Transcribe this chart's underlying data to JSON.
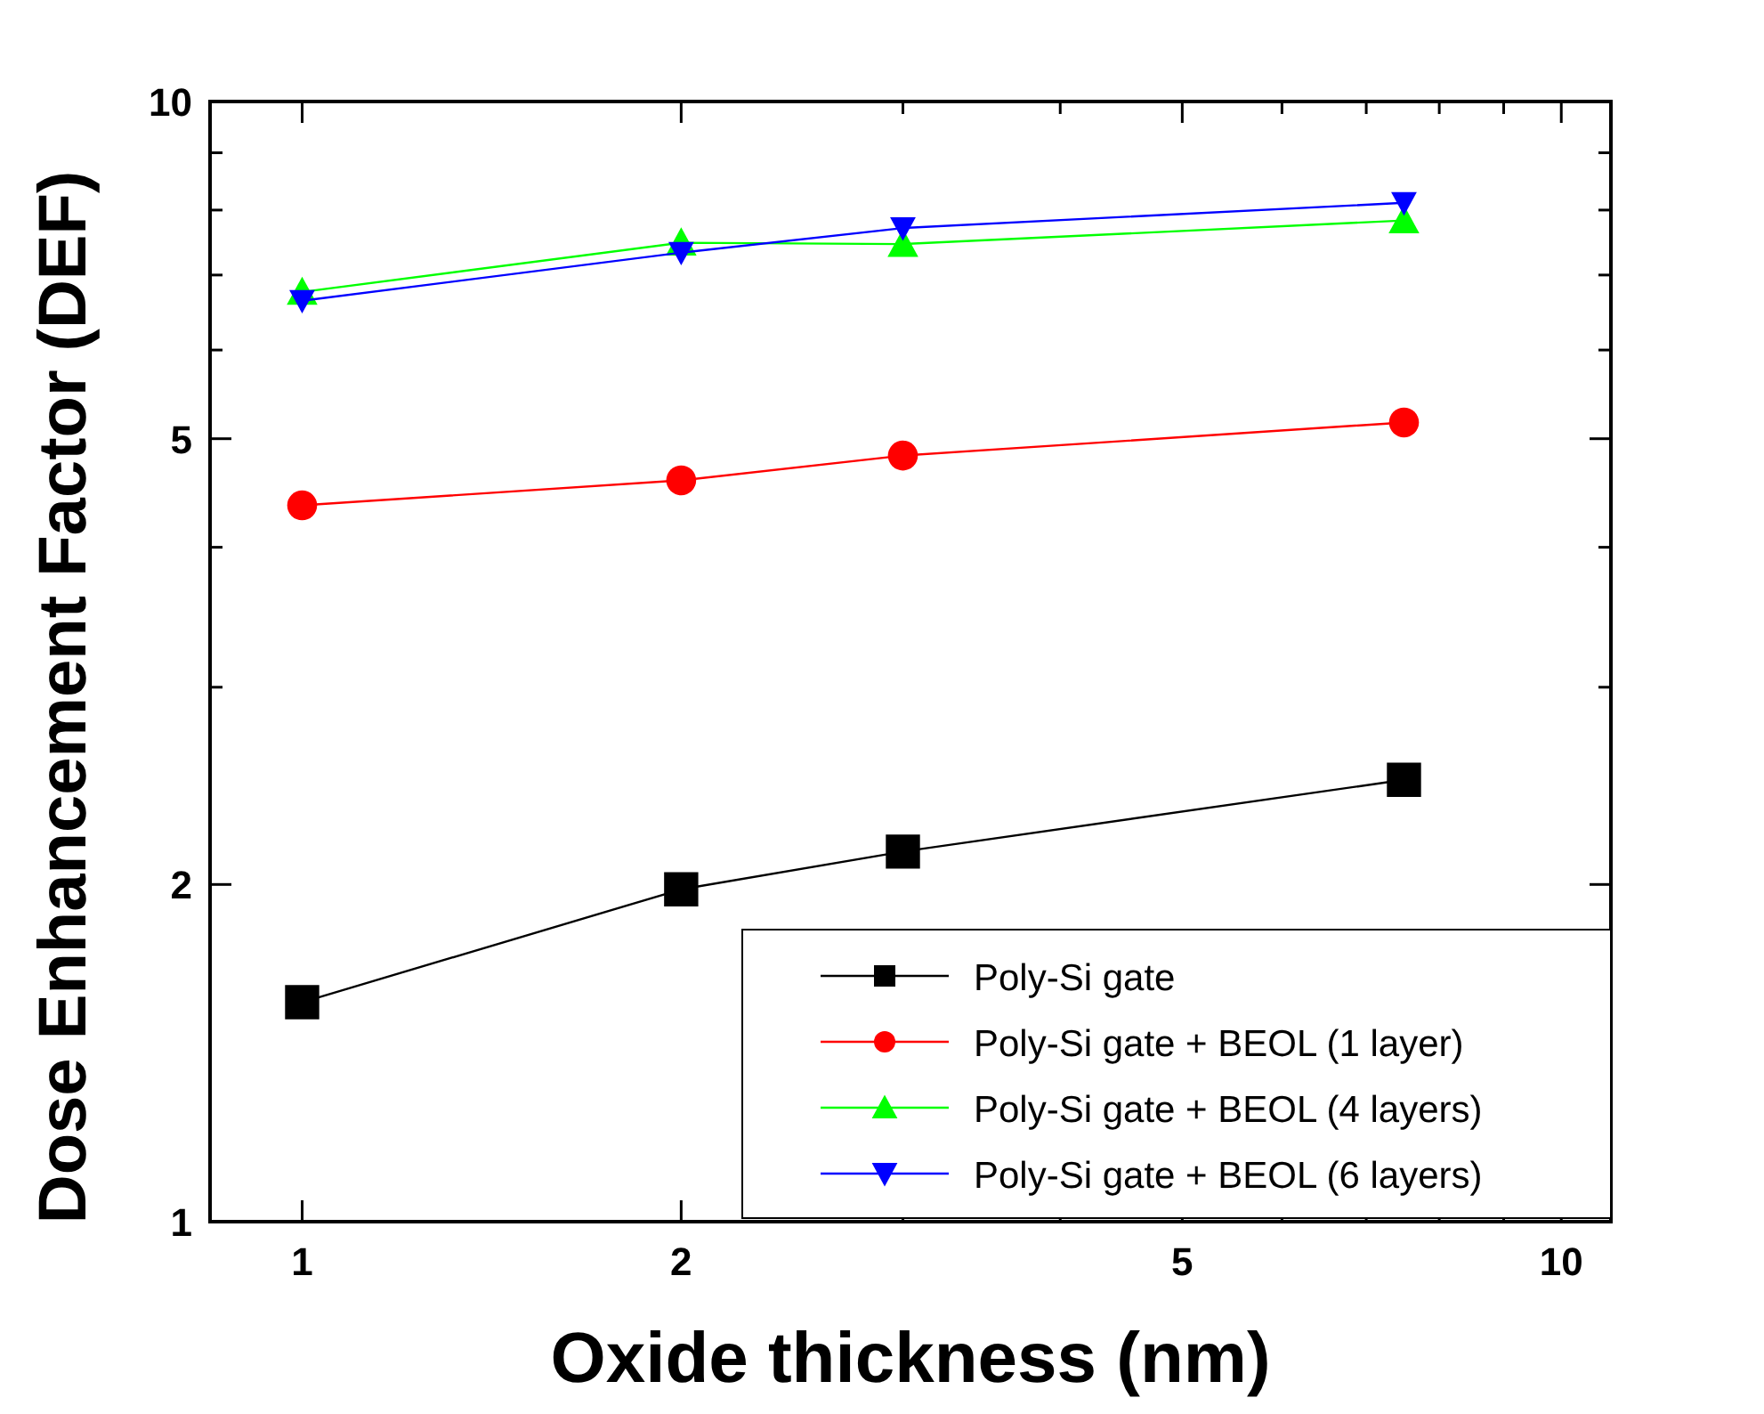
{
  "chart_data": {
    "type": "line",
    "xlabel": "Oxide thickness (nm)",
    "ylabel": "Dose Enhancement Factor (DEF)",
    "log": "xy",
    "xlim": [
      0.845,
      10.95
    ],
    "ylim": [
      1,
      10
    ],
    "xticks": [
      1,
      2,
      {
        "value": 3,
        "label": null
      },
      {
        "value": 4,
        "label": null
      },
      5,
      {
        "value": 6,
        "label": null
      },
      {
        "value": 7,
        "label": null
      },
      {
        "value": 8,
        "label": null
      },
      {
        "value": 9,
        "label": null
      },
      10
    ],
    "yticks": [
      1,
      2,
      {
        "value": 3,
        "label": null
      },
      {
        "value": 4,
        "label": null
      },
      5,
      {
        "value": 6,
        "label": null
      },
      {
        "value": 7,
        "label": null
      },
      {
        "value": 8,
        "label": null
      },
      {
        "value": 9,
        "label": null
      },
      10
    ],
    "x": [
      1,
      2,
      3,
      7.5
    ],
    "legend": "bottom right",
    "grid": false,
    "line_style": "solid",
    "series": [
      {
        "name": "Poly-Si gate",
        "color": "#000000",
        "marker": "square",
        "values": [
          1.57,
          1.98,
          2.14,
          2.48
        ]
      },
      {
        "name": "Poly-Si gate + BEOL (1 layer)",
        "color": "#ff0000",
        "marker": "circle",
        "values": [
          4.36,
          4.59,
          4.83,
          5.17
        ]
      },
      {
        "name": "Poly-Si gate + BEOL (4 layers)",
        "color": "#00ff00",
        "marker": "triangle",
        "values": [
          6.76,
          7.48,
          7.46,
          7.83
        ]
      },
      {
        "name": "Poly-Si gate + BEOL (6 layers)",
        "color": "#0000ff",
        "marker": "triangle-down",
        "values": [
          6.64,
          7.33,
          7.71,
          8.12
        ]
      }
    ]
  }
}
